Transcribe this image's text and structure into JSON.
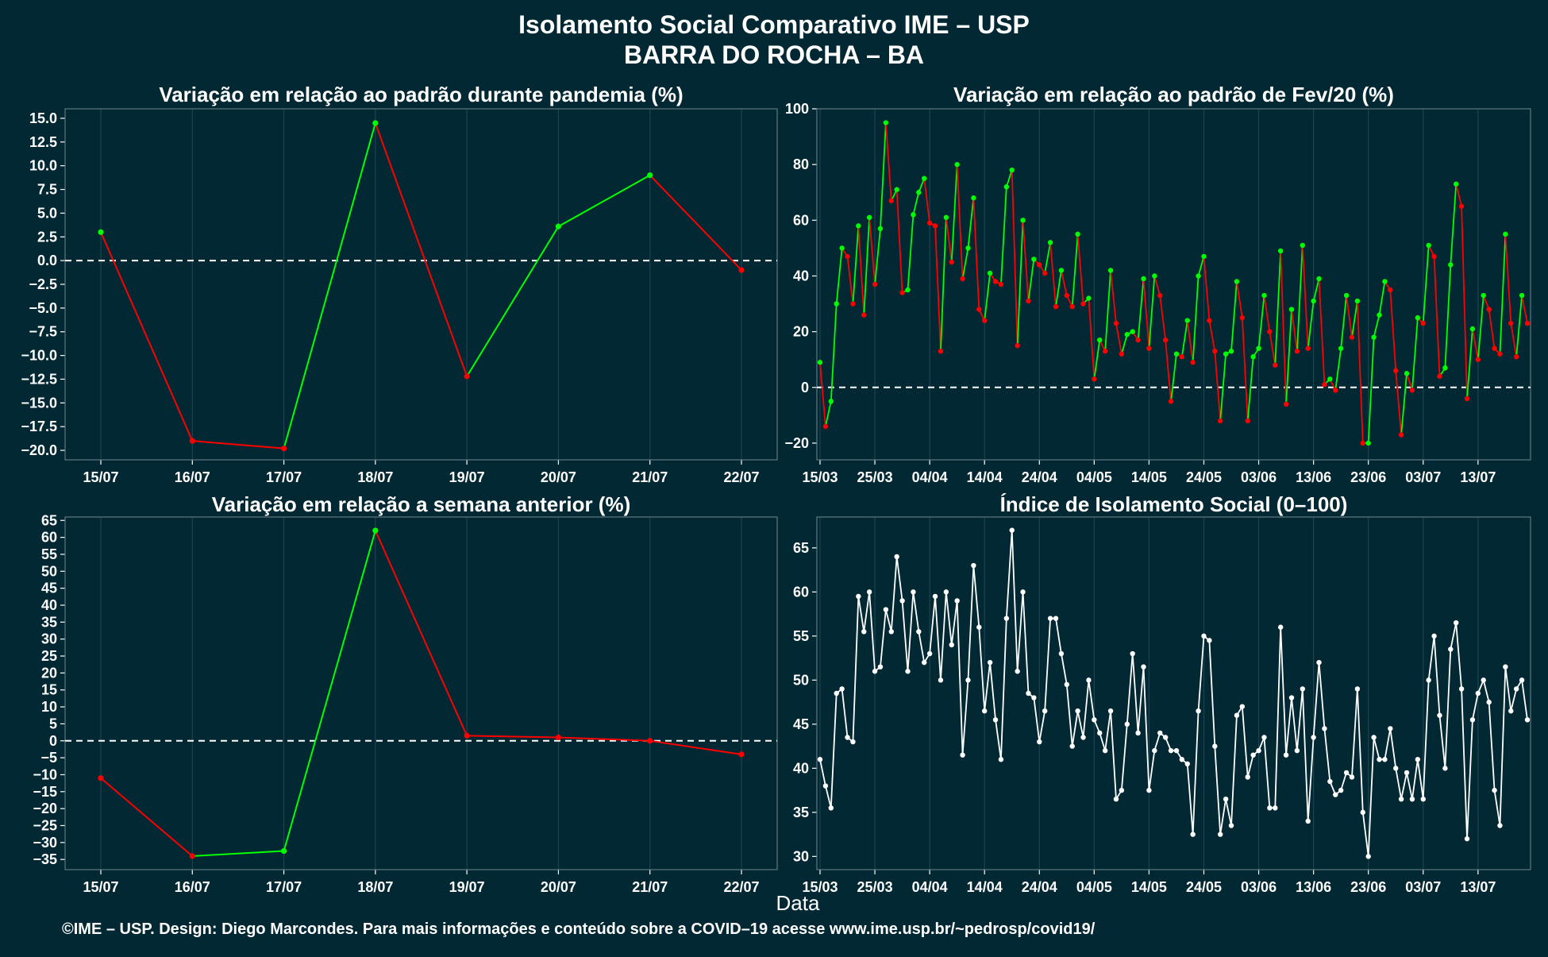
{
  "title": "Isolamento Social Comparativo IME – USP",
  "subtitle": "BARRA DO ROCHA – BA",
  "xlabel": "Data",
  "footer": "©IME – USP. Design: Diego Marcondes. Para mais informações e conteúdo sobre a COVID–19 acesse www.ime.usp.br/~pedrosp/covid19/",
  "colors": {
    "background": "#022833",
    "up": "#00ff00",
    "down": "#ff0000",
    "index": "#ffffff"
  },
  "chart_data": [
    {
      "id": "pandemia",
      "type": "line",
      "title": "Variação em relação ao padrão durante pandemia (%)",
      "categories": [
        "15/07",
        "16/07",
        "17/07",
        "18/07",
        "19/07",
        "20/07",
        "21/07",
        "22/07"
      ],
      "values": [
        3.0,
        -19.0,
        -19.8,
        14.5,
        -12.2,
        3.6,
        9.0,
        -1.0
      ],
      "ylim": [
        -21,
        16
      ],
      "yticks": [
        "15.0",
        "12.5",
        "10.0",
        "7.5",
        "5.0",
        "2.5",
        "0.0",
        "−2.5",
        "−5.0",
        "−7.5",
        "−10.0",
        "−12.5",
        "−15.0",
        "−17.5",
        "−20.0"
      ],
      "zero_line": true
    },
    {
      "id": "fev20",
      "type": "line",
      "title": "Variação em relação ao padrão de Fev/20 (%)",
      "x_start": "15/03",
      "xticks": [
        "15/03",
        "25/03",
        "04/04",
        "14/04",
        "24/04",
        "04/05",
        "14/05",
        "24/05",
        "03/06",
        "13/06",
        "23/06",
        "03/07",
        "13/07"
      ],
      "yticks": [
        "100",
        "80",
        "60",
        "40",
        "20",
        "0",
        "−20"
      ],
      "ylim": [
        -26,
        100
      ],
      "values": [
        9,
        -14,
        -5,
        30,
        50,
        47,
        30,
        58,
        26,
        61,
        37,
        57,
        95,
        67,
        71,
        34,
        35,
        62,
        70,
        75,
        59,
        58,
        13,
        61,
        45,
        80,
        39,
        50,
        68,
        28,
        24,
        41,
        38,
        37,
        72,
        78,
        15,
        60,
        31,
        46,
        44,
        41,
        52,
        29,
        42,
        33,
        29,
        55,
        30,
        32,
        3,
        17,
        13,
        42,
        23,
        12,
        19,
        20,
        17,
        39,
        14,
        40,
        33,
        17,
        -5,
        12,
        11,
        24,
        9,
        40,
        47,
        24,
        13,
        -12,
        12,
        13,
        38,
        25,
        -12,
        11,
        14,
        33,
        20,
        8,
        49,
        -6,
        28,
        13,
        51,
        14,
        31,
        39,
        1,
        3,
        -1,
        14,
        33,
        18,
        31,
        -20,
        -20,
        18,
        26,
        38,
        35,
        6,
        -17,
        5,
        -1,
        25,
        23,
        51,
        47,
        4,
        7,
        44,
        73,
        65,
        -4,
        21,
        10,
        33,
        28,
        14,
        12,
        55,
        23,
        11,
        33,
        23
      ]
    },
    {
      "id": "semana",
      "type": "line",
      "title": "Variação em relação a semana anterior (%)",
      "categories": [
        "15/07",
        "16/07",
        "17/07",
        "18/07",
        "19/07",
        "20/07",
        "21/07",
        "22/07"
      ],
      "values": [
        -11,
        -34,
        -32.5,
        62,
        1.5,
        1,
        0,
        -4
      ],
      "ylim": [
        -38,
        66
      ],
      "yticks": [
        "65",
        "60",
        "55",
        "50",
        "45",
        "40",
        "35",
        "30",
        "25",
        "20",
        "15",
        "10",
        "5",
        "0",
        "−5",
        "−10",
        "−15",
        "−20",
        "−25",
        "−30",
        "−35"
      ],
      "zero_line": true
    },
    {
      "id": "indice",
      "type": "line",
      "title": "Índice de Isolamento Social (0–100)",
      "x_start": "15/03",
      "xticks": [
        "15/03",
        "25/03",
        "04/04",
        "14/04",
        "24/04",
        "04/05",
        "14/05",
        "24/05",
        "03/06",
        "13/06",
        "23/06",
        "03/07",
        "13/07"
      ],
      "yticks": [
        "65",
        "60",
        "55",
        "50",
        "45",
        "40",
        "35",
        "30"
      ],
      "ylim": [
        28.5,
        68.5
      ],
      "values": [
        41,
        38,
        35.5,
        48.5,
        49,
        43.5,
        43,
        59.5,
        55.5,
        60,
        51,
        51.5,
        58,
        55.5,
        64,
        59,
        51,
        60,
        55.5,
        52,
        53,
        59.5,
        50,
        60,
        54,
        59,
        41.5,
        50,
        63,
        56,
        46.5,
        52,
        45.5,
        41,
        57,
        67,
        51,
        60,
        48.5,
        48,
        43,
        46.5,
        57,
        57,
        53,
        49.5,
        42.5,
        46.5,
        43.5,
        50,
        45.5,
        44,
        42,
        46.5,
        36.5,
        37.5,
        45,
        53,
        44,
        51.5,
        37.5,
        42,
        44,
        43.5,
        42,
        42,
        41,
        40.5,
        32.5,
        46.5,
        55,
        54.5,
        42.5,
        32.5,
        36.5,
        33.5,
        46,
        47,
        39,
        41.5,
        42,
        43.5,
        35.5,
        35.5,
        56,
        41.5,
        48,
        42,
        49,
        34,
        43.5,
        52,
        44.5,
        38.5,
        37,
        37.5,
        39.5,
        39,
        49,
        35,
        30,
        43.5,
        41,
        41,
        44.5,
        40,
        36.5,
        39.5,
        36.5,
        41,
        36.5,
        50,
        55,
        46,
        40,
        53.5,
        56.5,
        49,
        32,
        45.5,
        48.5,
        50,
        47.5,
        37.5,
        33.5,
        51.5,
        46.5,
        49,
        50,
        45.5
      ]
    }
  ]
}
